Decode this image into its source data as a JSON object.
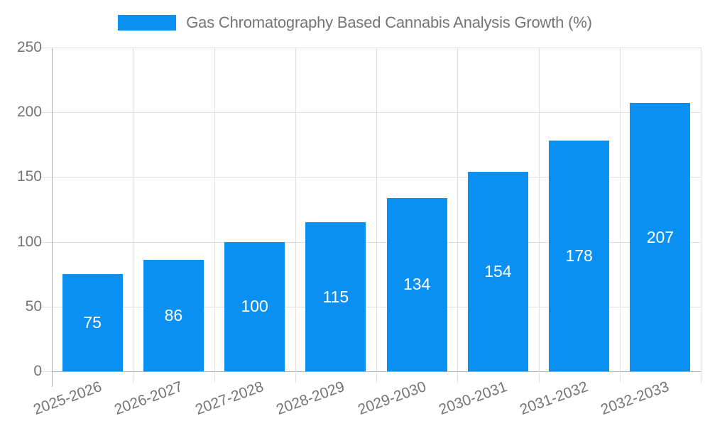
{
  "chart_data": {
    "type": "bar",
    "title": "Gas Chromatography Based Cannabis Analysis Growth (%)",
    "categories": [
      "2025-2026",
      "2026-2027",
      "2027-2028",
      "2028-2029",
      "2029-2030",
      "2030-2031",
      "2031-2032",
      "2032-2033"
    ],
    "values": [
      75,
      86,
      100,
      115,
      134,
      154,
      178,
      207
    ],
    "xlabel": "",
    "ylabel": "",
    "ylim": [
      0,
      250
    ],
    "yticks": [
      0,
      50,
      100,
      150,
      200,
      250
    ],
    "grid": true,
    "legend_position": "top-center",
    "value_labels": "inside-center",
    "x_label_rotation_deg": -20,
    "colors": {
      "bar": "#0A90F2",
      "value_label": "#FFFFFF",
      "axis_text": "#757575",
      "gridline": "#E0E0E0",
      "axis_line": "#AFAFAF"
    }
  }
}
